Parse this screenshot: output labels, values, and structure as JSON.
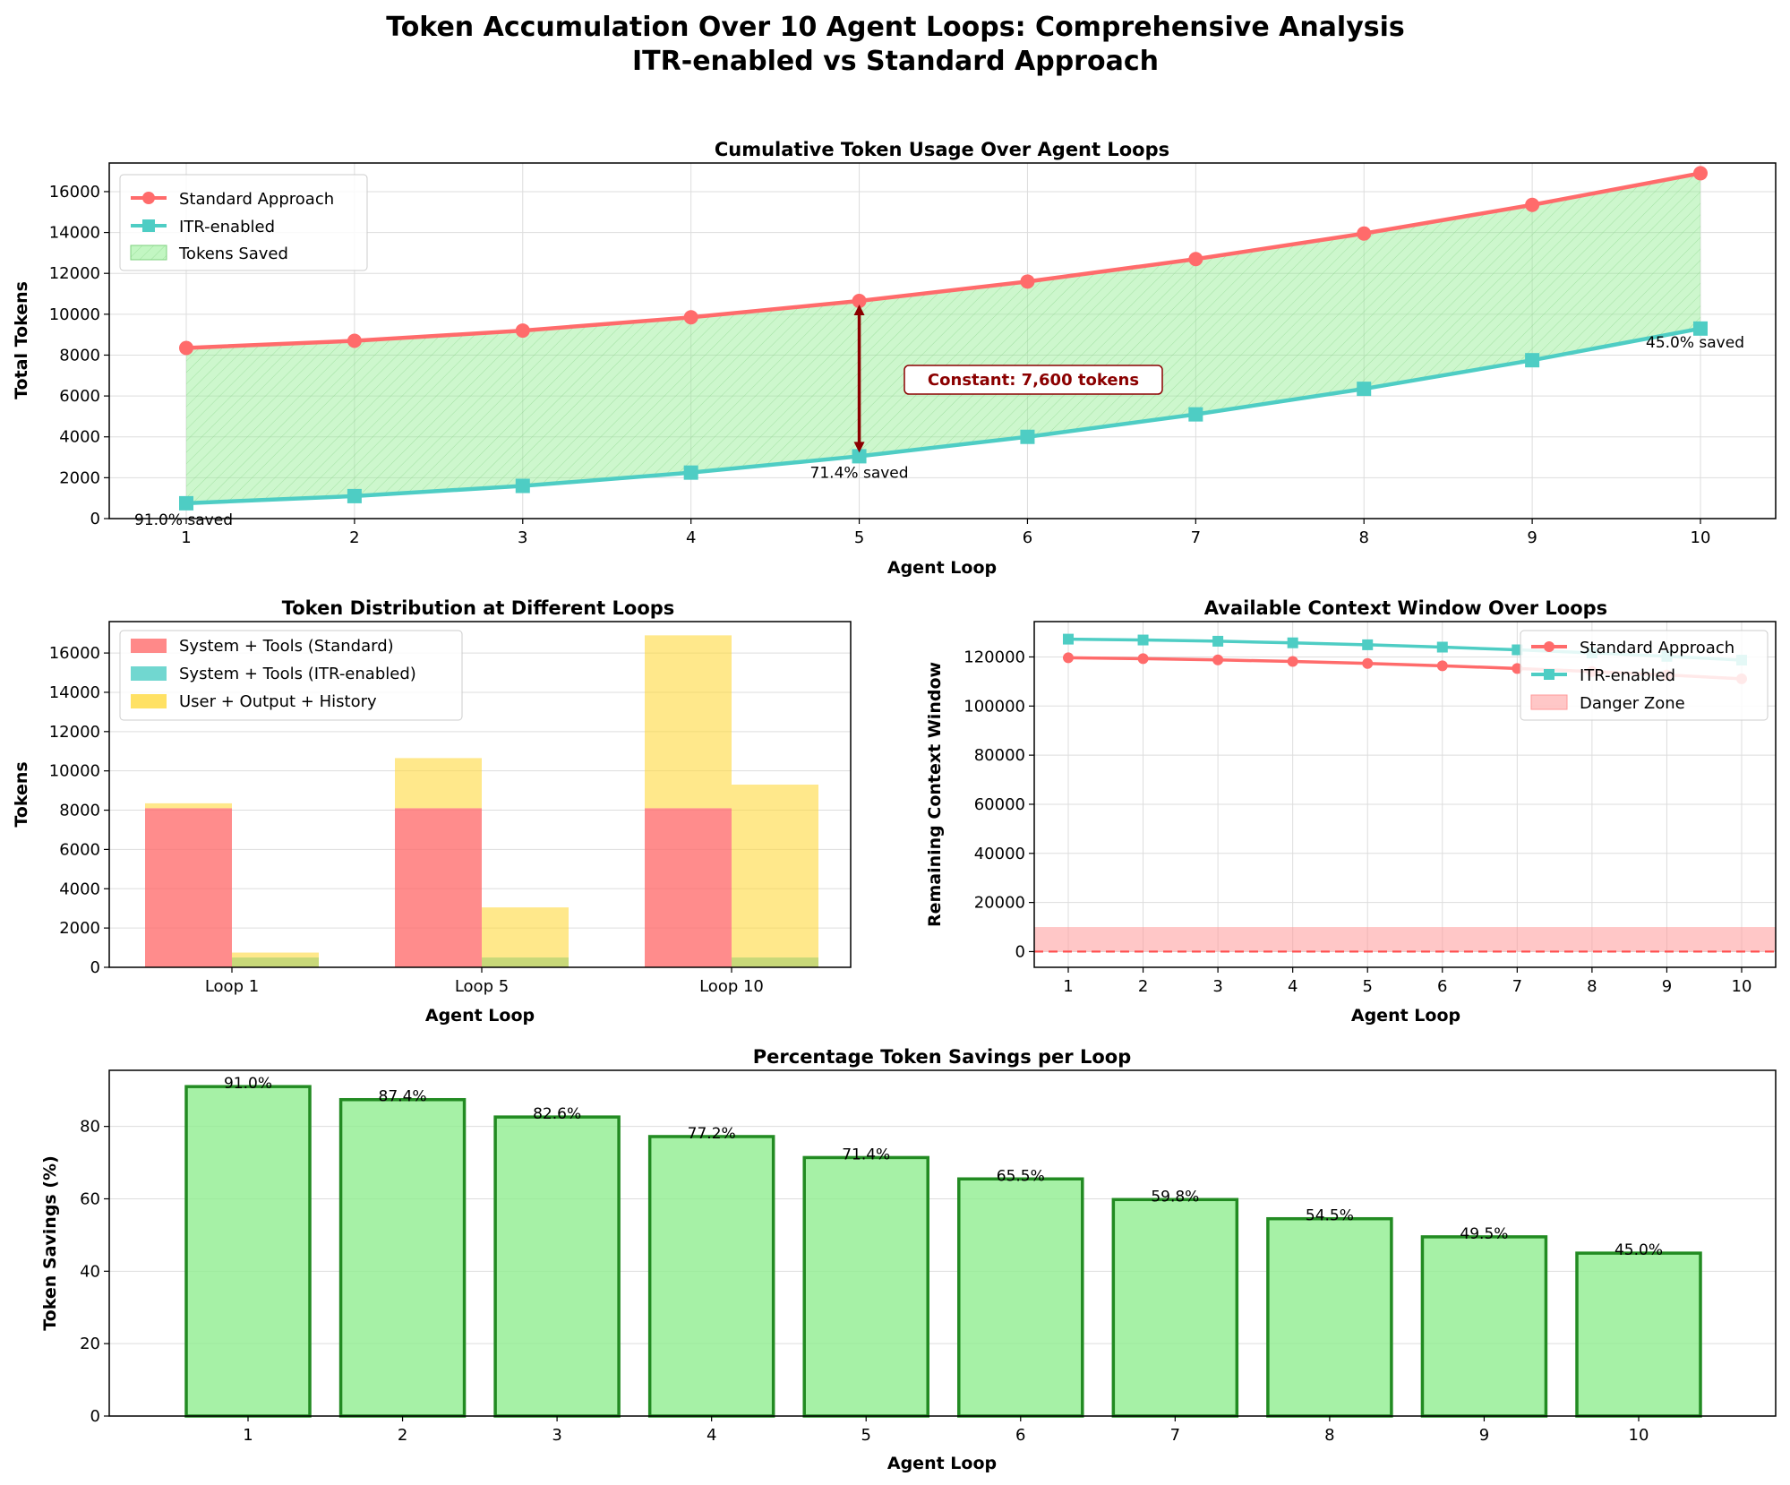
{
  "figure": {
    "title_line1": "Token Accumulation Over 10 Agent Loops: Comprehensive Analysis",
    "title_line2": "ITR-enabled vs Standard Approach"
  },
  "colors": {
    "standard": "#ff6b6b",
    "itr": "#4ecdc4",
    "saved": "#90ee90",
    "user": "#ffd93d",
    "annot": "#8b0000",
    "danger": "#ff9999"
  },
  "chart_data": [
    {
      "id": "cumulative",
      "type": "line",
      "title": "Cumulative Token Usage Over Agent Loops",
      "xlabel": "Agent Loop",
      "ylabel": "Total Tokens",
      "x": [
        1,
        2,
        3,
        4,
        5,
        6,
        7,
        8,
        9,
        10
      ],
      "ylim": [
        0,
        17400
      ],
      "yticks": [
        0,
        2000,
        4000,
        6000,
        8000,
        10000,
        12000,
        14000,
        16000
      ],
      "series": [
        {
          "name": "Standard Approach",
          "values": [
            8350,
            8700,
            9200,
            9850,
            10650,
            11600,
            12700,
            13950,
            15350,
            16900
          ]
        },
        {
          "name": "ITR-enabled",
          "values": [
            750,
            1100,
            1600,
            2250,
            3050,
            4000,
            5100,
            6350,
            7750,
            9300
          ]
        }
      ],
      "fill_label": "Tokens Saved",
      "legend": [
        "Standard Approach",
        "ITR-enabled",
        "Tokens Saved"
      ],
      "constant_label": "Constant: 7,600 tokens",
      "saved_annotations": [
        {
          "x": 1,
          "text": "91.0% saved"
        },
        {
          "x": 5,
          "text": "71.4% saved"
        },
        {
          "x": 10,
          "text": "45.0% saved"
        }
      ]
    },
    {
      "id": "distribution",
      "type": "bar",
      "title": "Token Distribution at Different Loops",
      "xlabel": "Agent Loop",
      "ylabel": "Tokens",
      "categories": [
        "Loop 1",
        "Loop 5",
        "Loop 10"
      ],
      "ylim": [
        0,
        17600
      ],
      "yticks": [
        0,
        2000,
        4000,
        6000,
        8000,
        10000,
        12000,
        14000,
        16000
      ],
      "series": [
        {
          "name": "System + Tools (Standard)",
          "values": [
            8100,
            8100,
            8100
          ]
        },
        {
          "name": "System + Tools (ITR-enabled)",
          "values": [
            500,
            500,
            500
          ]
        },
        {
          "name": "User + Output + History",
          "values_standard": [
            250,
            2550,
            8800
          ],
          "values_itr": [
            250,
            2550,
            8800
          ]
        }
      ],
      "legend": [
        "System + Tools (Standard)",
        "System + Tools (ITR-enabled)",
        "User + Output + History"
      ]
    },
    {
      "id": "context",
      "type": "line",
      "title": "Available Context Window Over Loops",
      "xlabel": "Agent Loop",
      "ylabel": "Remaining Context Window",
      "x": [
        1,
        2,
        3,
        4,
        5,
        6,
        7,
        8,
        9,
        10
      ],
      "ylim": [
        -6400,
        134400
      ],
      "yticks": [
        0,
        20000,
        40000,
        60000,
        80000,
        100000,
        120000
      ],
      "danger_zone": [
        0,
        10000
      ],
      "series": [
        {
          "name": "Standard Approach",
          "values": [
            119650,
            119300,
            118800,
            118150,
            117350,
            116400,
            115300,
            114050,
            112650,
            111100
          ]
        },
        {
          "name": "ITR-enabled",
          "values": [
            127250,
            126900,
            126400,
            125750,
            124950,
            124000,
            122900,
            121650,
            120250,
            118700
          ]
        }
      ],
      "legend": [
        "Standard Approach",
        "ITR-enabled",
        "Danger Zone"
      ]
    },
    {
      "id": "savings",
      "type": "bar",
      "title": "Percentage Token Savings per Loop",
      "xlabel": "Agent Loop",
      "ylabel": "Token Savings (%)",
      "categories": [
        "1",
        "2",
        "3",
        "4",
        "5",
        "6",
        "7",
        "8",
        "9",
        "10"
      ],
      "values": [
        91.0,
        87.4,
        82.6,
        77.2,
        71.4,
        65.5,
        59.8,
        54.5,
        49.5,
        45.0
      ],
      "labels": [
        "91.0%",
        "87.4%",
        "82.6%",
        "77.2%",
        "71.4%",
        "65.5%",
        "59.8%",
        "54.5%",
        "49.5%",
        "45.0%"
      ],
      "ylim": [
        0,
        95.5
      ],
      "yticks": [
        0,
        20,
        40,
        60,
        80
      ]
    }
  ]
}
